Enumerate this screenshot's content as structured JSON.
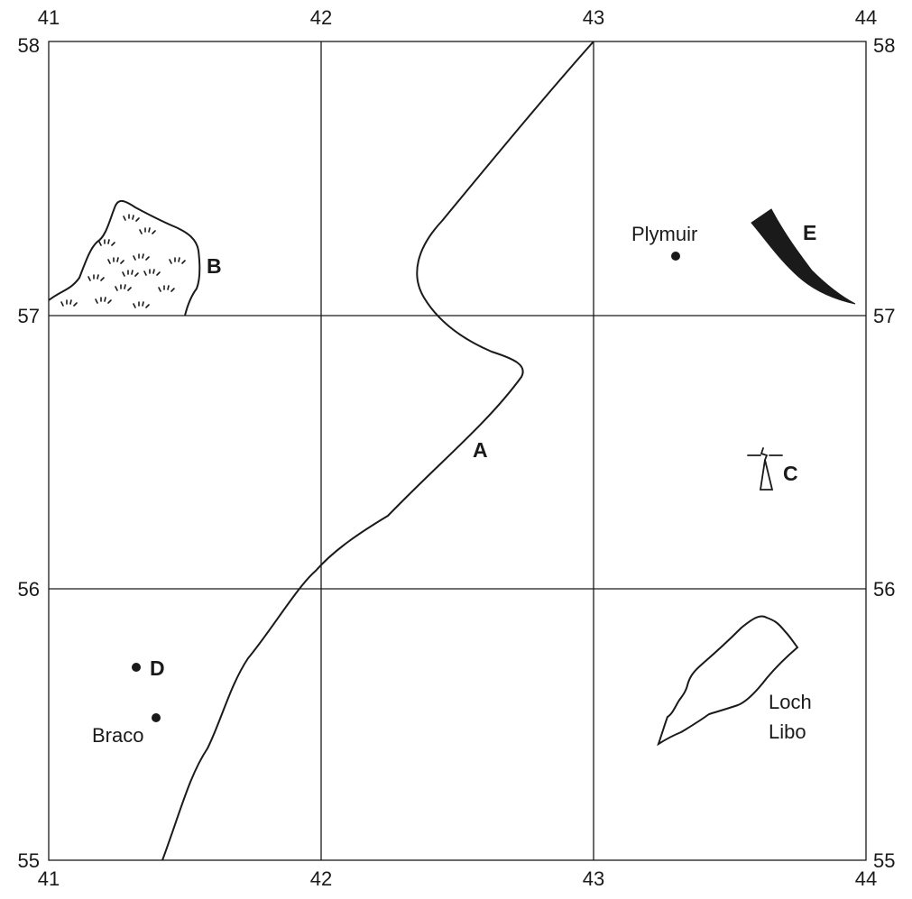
{
  "map": {
    "easting_labels": [
      "41",
      "42",
      "43",
      "44"
    ],
    "northing_labels": [
      "58",
      "57",
      "56",
      "55"
    ],
    "features": {
      "A": {
        "letter": "A",
        "kind": "river"
      },
      "B": {
        "letter": "B",
        "kind": "marsh"
      },
      "C": {
        "letter": "C",
        "kind": "lighthouse"
      },
      "D": {
        "letter": "D",
        "kind": "point"
      },
      "E": {
        "letter": "E",
        "kind": "black-shape"
      }
    },
    "places": {
      "plymuir": "Plymuir",
      "braco": "Braco",
      "loch_line1": "Loch",
      "loch_line2": "Libo"
    }
  },
  "colors": {
    "ink": "#1a1a1a",
    "background": "#ffffff"
  }
}
